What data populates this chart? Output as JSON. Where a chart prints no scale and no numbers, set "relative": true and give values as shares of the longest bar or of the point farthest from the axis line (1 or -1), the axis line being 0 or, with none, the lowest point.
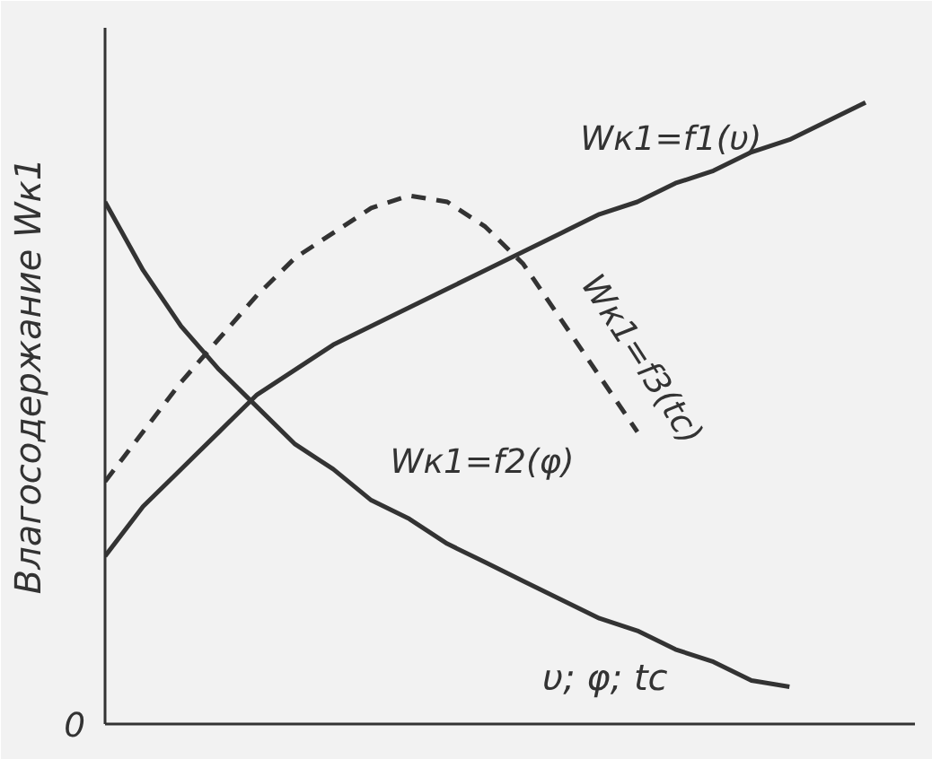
{
  "chart_data": {
    "type": "line",
    "relative": true,
    "ylabel": "Влагосодержание Wк1",
    "xlabel": "υ; φ; tc",
    "categories": [
      null,
      null,
      null,
      null,
      null,
      null,
      null,
      null,
      null,
      null,
      null,
      null,
      null,
      null,
      null,
      null,
      null,
      null,
      null,
      null,
      null
    ],
    "series": [
      {
        "name": "Wк1=f1(υ)",
        "color": "#333333",
        "line_style": "solid",
        "values": [
          0.27,
          0.35,
          0.41,
          0.47,
          0.53,
          0.57,
          0.61,
          0.64,
          0.67,
          0.7,
          0.73,
          0.76,
          0.79,
          0.82,
          0.84,
          0.87,
          0.89,
          0.92,
          0.94,
          0.97,
          1
        ]
      },
      {
        "name": "Wк1=f2(φ)",
        "color": "#333333",
        "line_style": "solid",
        "values": [
          0.84,
          0.73,
          0.64,
          0.57,
          0.51,
          0.45,
          0.41,
          0.36,
          0.33,
          0.29,
          0.26,
          0.23,
          0.2,
          0.17,
          0.15,
          0.12,
          0.1,
          0.07,
          0.06,
          null,
          null
        ]
      },
      {
        "name": "Wк1=f3(tc)",
        "color": "#333333",
        "line_style": "dashed",
        "values": [
          0.39,
          0.47,
          0.55,
          0.62,
          0.69,
          0.75,
          0.79,
          0.83,
          0.85,
          0.84,
          0.8,
          0.74,
          0.65,
          0.56,
          0.47,
          null,
          null,
          null,
          null,
          null,
          null
        ]
      }
    ],
    "annotations": [
      "0"
    ],
    "legend": false
  }
}
